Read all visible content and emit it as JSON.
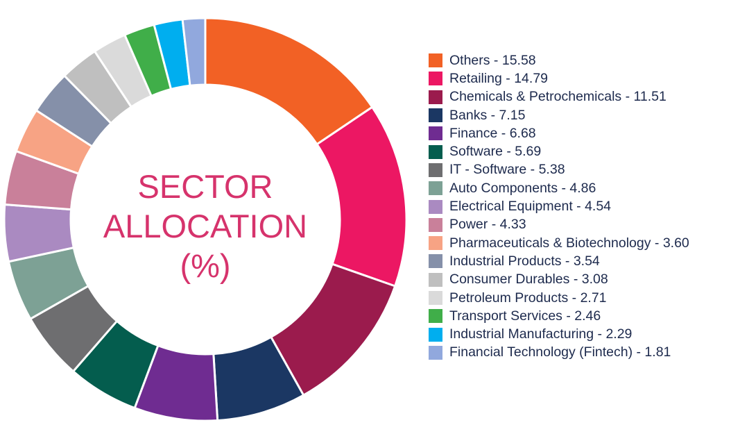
{
  "chart_data": {
    "type": "pie",
    "title_lines": [
      "SECTOR",
      "ALLOCATION",
      "(%)"
    ],
    "legend_position": "right",
    "slices": [
      {
        "label": "Others - 15.58",
        "name": "Others",
        "value": 15.58,
        "color": "#f26125"
      },
      {
        "label": "Retailing - 14.79",
        "name": "Retailing",
        "value": 14.79,
        "color": "#ec1763"
      },
      {
        "label": "Chemicals & Petrochemicals - 11.51",
        "name": "Chemicals & Petrochemicals",
        "value": 11.51,
        "color": "#9b1b4d"
      },
      {
        "label": "Banks - 7.15",
        "name": "Banks",
        "value": 7.15,
        "color": "#1b3763"
      },
      {
        "label": "Finance - 6.68",
        "name": "Finance",
        "value": 6.68,
        "color": "#6f2c91"
      },
      {
        "label": "Software - 5.69",
        "name": "Software",
        "value": 5.69,
        "color": "#045d4e"
      },
      {
        "label": "IT - Software - 5.38",
        "name": "IT - Software",
        "value": 5.38,
        "color": "#6e6e70"
      },
      {
        "label": "Auto Components - 4.86",
        "name": "Auto Components",
        "value": 4.86,
        "color": "#7da195"
      },
      {
        "label": "Electrical Equipment - 4.54",
        "name": "Electrical Equipment",
        "value": 4.54,
        "color": "#aa8ac1"
      },
      {
        "label": "Power - 4.33",
        "name": "Power",
        "value": 4.33,
        "color": "#c9809a"
      },
      {
        "label": "Pharmaceuticals & Biotechnology - 3.60",
        "name": "Pharmaceuticals & Biotechnology",
        "value": 3.6,
        "color": "#f7a384"
      },
      {
        "label": "Industrial Products - 3.54",
        "name": "Industrial Products",
        "value": 3.54,
        "color": "#8590a9"
      },
      {
        "label": "Consumer Durables - 3.08",
        "name": "Consumer Durables",
        "value": 3.08,
        "color": "#bfbfbf"
      },
      {
        "label": "Petroleum Products - 2.71",
        "name": "Petroleum Products",
        "value": 2.71,
        "color": "#dadada"
      },
      {
        "label": "Transport Services - 2.46",
        "name": "Transport Services",
        "value": 2.46,
        "color": "#40ae49"
      },
      {
        "label": "Industrial Manufacturing - 2.29",
        "name": "Industrial Manufacturing",
        "value": 2.29,
        "color": "#00aeef"
      },
      {
        "label": "Financial Technology (Fintech) - 1.81",
        "name": "Financial Technology (Fintech)",
        "value": 1.81,
        "color": "#91a8dd"
      }
    ]
  },
  "colors": {
    "title": "#d6336c",
    "legend_text": "#1d2a4d"
  }
}
